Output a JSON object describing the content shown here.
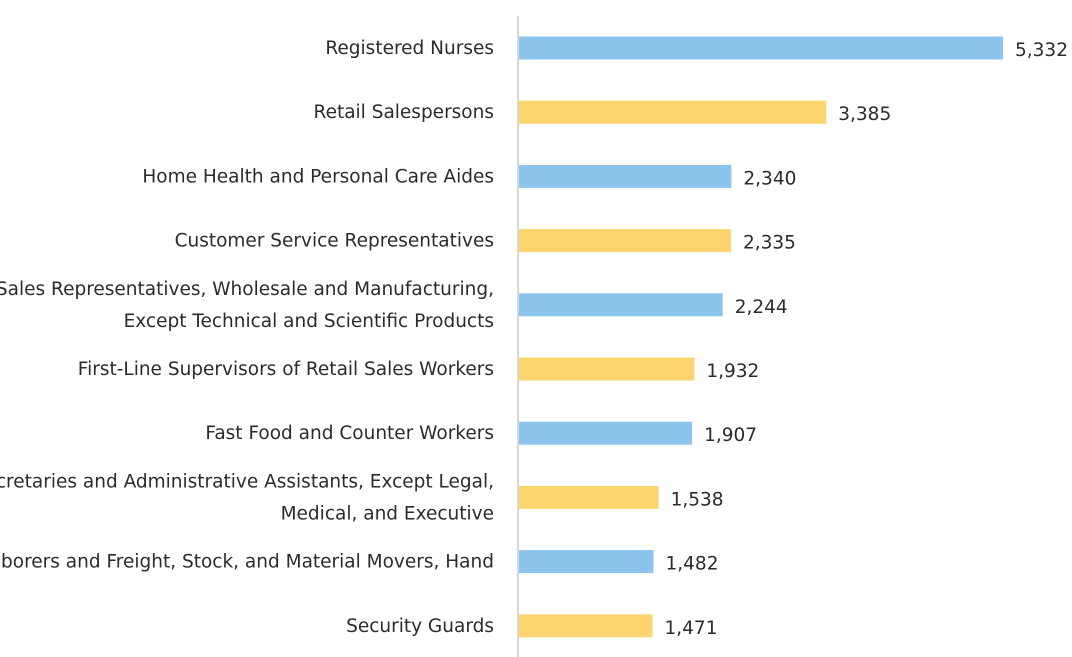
{
  "chart_data": {
    "type": "bar",
    "orientation": "horizontal",
    "title": "",
    "xlabel": "",
    "ylabel": "",
    "categories": [
      [
        "Registered Nurses"
      ],
      [
        "Retail Salespersons"
      ],
      [
        "Home Health and Personal Care Aides"
      ],
      [
        "Customer Service Representatives"
      ],
      [
        "Sales Representatives, Wholesale and Manufacturing,",
        "Except Technical and Scientific Products"
      ],
      [
        "First-Line Supervisors of Retail Sales Workers"
      ],
      [
        "Fast Food and Counter Workers"
      ],
      [
        "Secretaries and Administrative Assistants, Except Legal,",
        "Medical, and Executive"
      ],
      [
        "Laborers and Freight, Stock, and Material Movers, Hand"
      ],
      [
        "Security Guards"
      ]
    ],
    "values": [
      5332,
      3385,
      2340,
      2335,
      2244,
      1932,
      1907,
      1538,
      1482,
      1471
    ],
    "value_labels": [
      "5,332",
      "3,385",
      "2,340",
      "2,335",
      "2,244",
      "1,932",
      "1,907",
      "1,538",
      "1,482",
      "1,471"
    ],
    "colors": [
      "#8cc4ee",
      "#fdd46e"
    ],
    "axis_color": "#c8c8c8",
    "text_color": "#2b2b2b",
    "xlim": [
      0,
      5332
    ],
    "grid": false,
    "legend": "none"
  }
}
